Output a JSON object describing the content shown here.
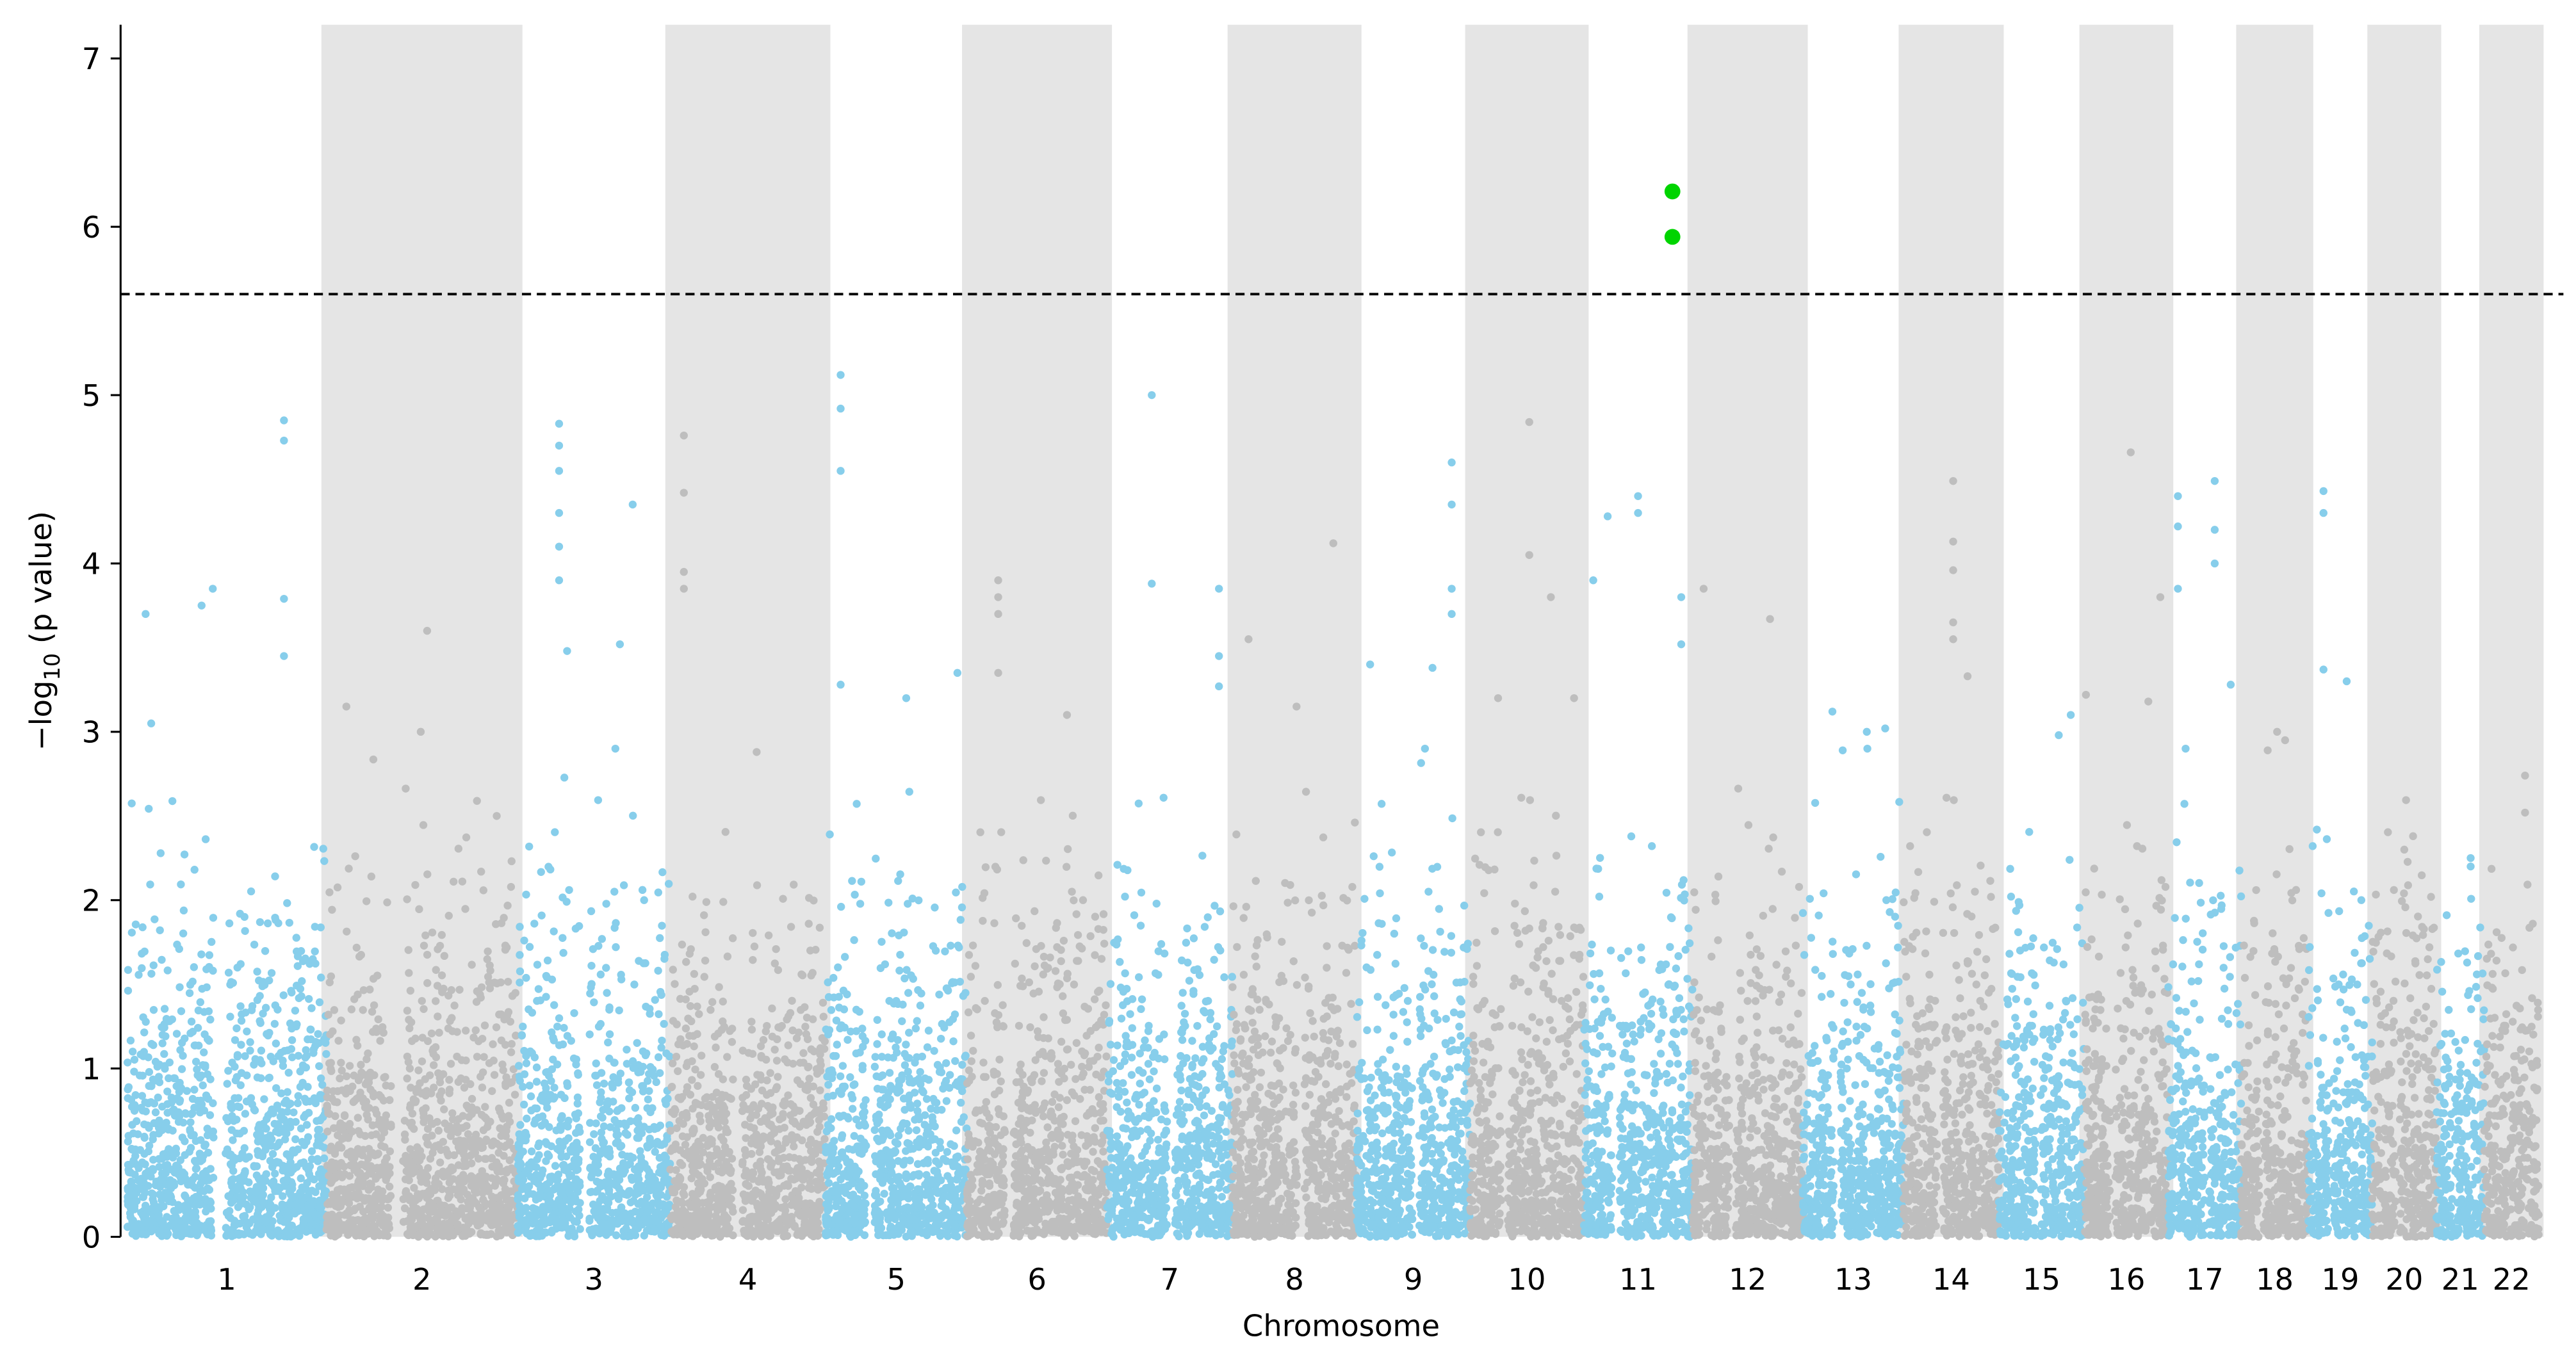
{
  "chart_data": {
    "type": "scatter",
    "subtype": "manhattan",
    "title": "",
    "xlabel": "Chromosome",
    "ylabel": "−log",
    "ylabel_sub": "10",
    "ylabel_tail": " (p value)",
    "ylim": [
      0,
      7.2
    ],
    "yticks": [
      0,
      1,
      2,
      3,
      4,
      5,
      6,
      7
    ],
    "grid": false,
    "legend": "none",
    "significance_threshold": 5.6,
    "colors": {
      "odd": "#87ceeb",
      "even": "#bebebe",
      "significant": "#00d400",
      "band": "#e5e5e5",
      "threshold": "#000000"
    },
    "chromosomes": [
      {
        "label": "1",
        "length_mb": 249,
        "top_hits": [
          [
            23,
            3.7
          ],
          [
            93,
            3.75
          ],
          [
            107,
            3.85
          ],
          [
            196,
            4.85
          ],
          [
            196,
            4.73
          ],
          [
            196,
            3.79
          ],
          [
            196,
            3.45
          ],
          [
            30,
            3.05
          ]
        ]
      },
      {
        "label": "2",
        "length_mb": 239,
        "top_hits": [
          [
            126,
            3.6
          ],
          [
            25,
            3.15
          ],
          [
            118,
            3.0
          ],
          [
            213,
            2.5
          ]
        ]
      },
      {
        "label": "3",
        "length_mb": 191,
        "top_hits": [
          [
            52,
            4.83
          ],
          [
            52,
            4.7
          ],
          [
            52,
            4.55
          ],
          [
            52,
            4.3
          ],
          [
            52,
            4.1
          ],
          [
            52,
            3.9
          ],
          [
            144,
            4.35
          ],
          [
            128,
            3.52
          ],
          [
            62,
            3.48
          ]
        ]
      },
      {
        "label": "4",
        "length_mb": 194,
        "top_hits": [
          [
            17,
            4.76
          ],
          [
            17,
            4.42
          ],
          [
            17,
            3.95
          ],
          [
            17,
            3.85
          ],
          [
            108,
            2.88
          ]
        ]
      },
      {
        "label": "5",
        "length_mb": 177,
        "top_hits": [
          [
            19,
            5.12
          ],
          [
            19,
            4.92
          ],
          [
            19,
            4.55
          ],
          [
            19,
            3.28
          ],
          [
            101,
            3.2
          ],
          [
            165,
            3.35
          ]
        ]
      },
      {
        "label": "6",
        "length_mb": 175,
        "top_hits": [
          [
            39,
            3.9
          ],
          [
            39,
            3.8
          ],
          [
            39,
            3.7
          ],
          [
            39,
            3.35
          ],
          [
            125,
            3.1
          ]
        ]
      },
      {
        "label": "7",
        "length_mb": 157,
        "top_hits": [
          [
            56,
            5.0
          ],
          [
            56,
            3.88
          ],
          [
            140,
            3.85
          ],
          [
            140,
            3.45
          ],
          [
            140,
            3.27
          ]
        ]
      },
      {
        "label": "8",
        "length_mb": 155,
        "top_hits": [
          [
            126,
            4.12
          ],
          [
            20,
            3.55
          ],
          [
            80,
            3.15
          ]
        ]
      },
      {
        "label": "9",
        "length_mb": 142,
        "top_hits": [
          [
            119,
            4.6
          ],
          [
            119,
            4.35
          ],
          [
            119,
            3.85
          ],
          [
            119,
            3.7
          ],
          [
            17,
            3.4
          ],
          [
            95,
            3.38
          ]
        ]
      },
      {
        "label": "10",
        "length_mb": 142,
        "top_hits": [
          [
            74,
            4.84
          ],
          [
            74,
            4.05
          ],
          [
            101,
            3.8
          ],
          [
            35,
            3.2
          ],
          [
            130,
            3.2
          ]
        ]
      },
      {
        "label": "11",
        "length_mb": 136,
        "top_hits": [
          [
            111,
            6.21
          ],
          [
            111,
            5.94
          ],
          [
            68,
            4.4
          ],
          [
            68,
            4.3
          ],
          [
            30,
            4.28
          ],
          [
            12,
            3.9
          ],
          [
            122,
            3.8
          ],
          [
            122,
            3.52
          ]
        ]
      },
      {
        "label": "12",
        "length_mb": 138,
        "top_hits": [
          [
            14,
            3.85
          ],
          [
            97,
            3.67
          ]
        ]
      },
      {
        "label": "13",
        "length_mb": 126,
        "top_hits": [
          [
            37,
            3.12
          ],
          [
            80,
            3.0
          ],
          [
            103,
            3.02
          ]
        ]
      },
      {
        "label": "14",
        "length_mb": 119,
        "top_hits": [
          [
            62,
            4.49
          ],
          [
            62,
            4.13
          ],
          [
            62,
            3.96
          ],
          [
            62,
            3.65
          ],
          [
            62,
            3.55
          ],
          [
            80,
            3.33
          ]
        ]
      },
      {
        "label": "15",
        "length_mb": 107,
        "top_hits": [
          [
            90,
            3.1
          ],
          [
            75,
            2.98
          ]
        ]
      },
      {
        "label": "16",
        "length_mb": 105,
        "top_hits": [
          [
            58,
            4.66
          ],
          [
            95,
            3.8
          ],
          [
            2,
            3.22
          ],
          [
            80,
            3.18
          ]
        ]
      },
      {
        "label": "17",
        "length_mb": 91,
        "top_hits": [
          [
            58,
            4.49
          ],
          [
            58,
            4.2
          ],
          [
            58,
            4.0
          ],
          [
            12,
            4.4
          ],
          [
            12,
            4.22
          ],
          [
            12,
            3.85
          ],
          [
            78,
            3.28
          ]
        ]
      },
      {
        "label": "18",
        "length_mb": 84,
        "top_hits": [
          [
            45,
            3.0
          ],
          [
            55,
            2.95
          ]
        ]
      },
      {
        "label": "19",
        "length_mb": 80,
        "top_hits": [
          [
            19,
            4.43
          ],
          [
            19,
            4.3
          ],
          [
            19,
            3.37
          ],
          [
            48,
            3.3
          ]
        ]
      },
      {
        "label": "20",
        "length_mb": 80,
        "top_hits": [
          [
            51,
            2.38
          ],
          [
            40,
            2.3
          ]
        ]
      },
      {
        "label": "21",
        "length_mb": 60,
        "top_hits": [
          [
            43,
            2.25
          ],
          [
            43,
            2.2
          ]
        ]
      },
      {
        "label": "22",
        "length_mb": 68,
        "top_hits": [
          [
            51,
            2.74
          ],
          [
            51,
            2.52
          ]
        ]
      }
    ]
  }
}
